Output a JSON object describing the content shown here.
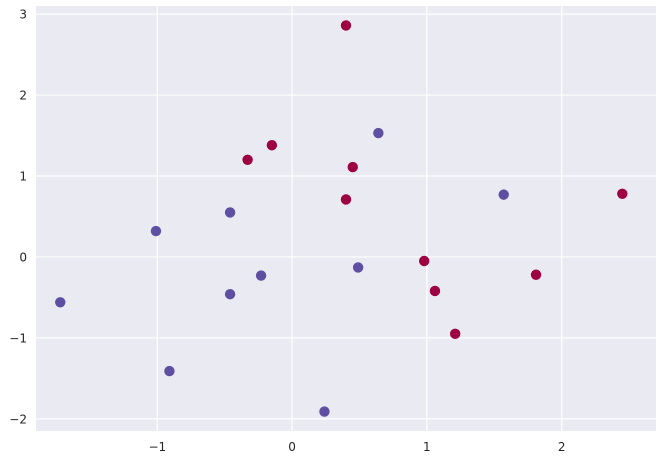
{
  "chart_data": {
    "type": "scatter",
    "title": "",
    "xlabel": "",
    "ylabel": "",
    "xlim": [
      -1.9,
      2.7
    ],
    "ylim": [
      -2.15,
      3.1
    ],
    "grid": true,
    "background": "#eaeaf2",
    "grid_color": "#ffffff",
    "x_ticks": [
      {
        "value": -1,
        "label": "−1"
      },
      {
        "value": 0,
        "label": "0"
      },
      {
        "value": 1,
        "label": "1"
      },
      {
        "value": 2,
        "label": "2"
      }
    ],
    "y_ticks": [
      {
        "value": -2,
        "label": "−2"
      },
      {
        "value": -1,
        "label": "−1"
      },
      {
        "value": 0,
        "label": "0"
      },
      {
        "value": 1,
        "label": "1"
      },
      {
        "value": 2,
        "label": "2"
      },
      {
        "value": 3,
        "label": "3"
      }
    ],
    "series": [
      {
        "color": "#5e4fa2",
        "points": [
          {
            "x": -1.72,
            "y": -0.56
          },
          {
            "x": -1.01,
            "y": 0.32
          },
          {
            "x": -0.91,
            "y": -1.41
          },
          {
            "x": -0.46,
            "y": 0.55
          },
          {
            "x": -0.46,
            "y": -0.46
          },
          {
            "x": -0.23,
            "y": -0.23
          },
          {
            "x": 0.24,
            "y": -1.91
          },
          {
            "x": 0.49,
            "y": -0.13
          },
          {
            "x": 0.64,
            "y": 1.53
          },
          {
            "x": 1.57,
            "y": 0.77
          }
        ]
      },
      {
        "color": "#9e0142",
        "points": [
          {
            "x": -0.33,
            "y": 1.2
          },
          {
            "x": -0.15,
            "y": 1.38
          },
          {
            "x": 0.4,
            "y": 2.86
          },
          {
            "x": 0.45,
            "y": 1.11
          },
          {
            "x": 0.4,
            "y": 0.71
          },
          {
            "x": 0.98,
            "y": -0.05
          },
          {
            "x": 1.06,
            "y": -0.42
          },
          {
            "x": 1.21,
            "y": -0.95
          },
          {
            "x": 1.81,
            "y": -0.22
          },
          {
            "x": 2.45,
            "y": 0.78
          }
        ]
      }
    ]
  }
}
